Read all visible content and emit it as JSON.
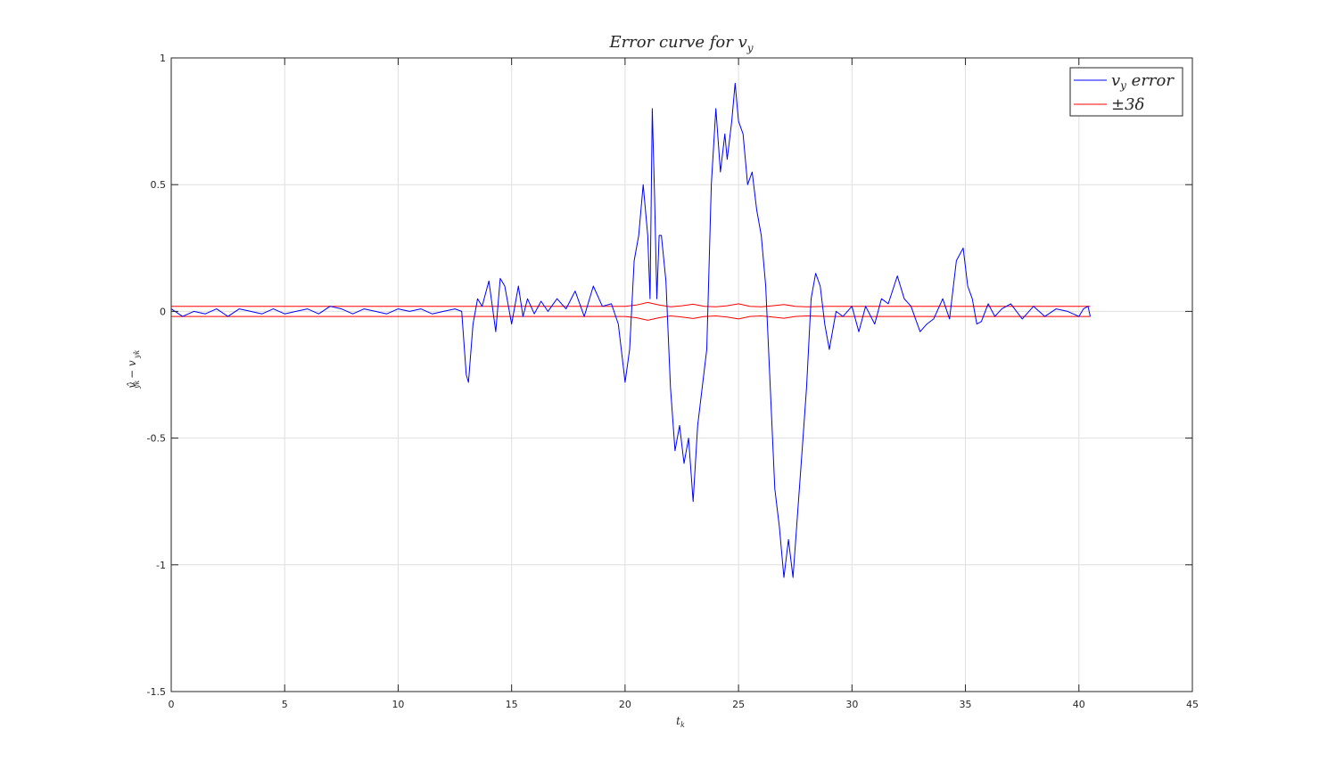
{
  "chart_data": {
    "type": "line",
    "title": "Error  curve  for  v",
    "title_sub": "y",
    "xlabel": "t",
    "xlabel_sub": "k",
    "ylabel": "v̂  − v",
    "ylabel_sub1": "yk",
    "ylabel_sub2": "yk",
    "xlim": [
      0,
      45
    ],
    "ylim": [
      -1.5,
      1
    ],
    "xticks": [
      0,
      5,
      10,
      15,
      20,
      25,
      30,
      35,
      40,
      45
    ],
    "xtick_labels": [
      "0",
      "5",
      "10",
      "15",
      "20",
      "25",
      "30",
      "35",
      "40",
      "45"
    ],
    "yticks": [
      1,
      0.5,
      0,
      -0.5,
      -1,
      -1.5
    ],
    "ytick_labels": [
      "1",
      "0.5",
      "0",
      "-0.5",
      "-1",
      "-1.5"
    ],
    "grid": true,
    "legend_position": "top-right",
    "legend": [
      {
        "text": "v",
        "sub": "y",
        "suffix": " error",
        "color": "#0000ff"
      },
      {
        "text": "±3δ",
        "sub": "",
        "suffix": "",
        "color": "#ff0000"
      }
    ],
    "series": [
      {
        "name": "v_y error",
        "color": "#0000ff",
        "x": [
          0,
          0.5,
          1,
          1.5,
          2,
          2.5,
          3,
          3.5,
          4,
          4.5,
          5,
          5.5,
          6,
          6.5,
          7,
          7.5,
          8,
          8.5,
          9,
          9.5,
          10,
          10.5,
          11,
          11.5,
          12,
          12.5,
          12.8,
          13,
          13.1,
          13.3,
          13.5,
          13.7,
          14,
          14.3,
          14.5,
          14.7,
          15,
          15.3,
          15.5,
          15.7,
          16,
          16.3,
          16.6,
          17,
          17.4,
          17.8,
          18.2,
          18.6,
          19,
          19.4,
          19.7,
          19.9,
          20,
          20.2,
          20.4,
          20.6,
          20.8,
          21,
          21.1,
          21.2,
          21.3,
          21.4,
          21.5,
          21.6,
          21.8,
          22,
          22.2,
          22.4,
          22.6,
          22.8,
          23,
          23.2,
          23.4,
          23.6,
          23.8,
          24,
          24.2,
          24.4,
          24.5,
          24.7,
          24.85,
          25,
          25.2,
          25.4,
          25.6,
          25.8,
          26,
          26.2,
          26.4,
          26.6,
          26.8,
          27,
          27.2,
          27.4,
          27.6,
          27.8,
          28,
          28.2,
          28.4,
          28.6,
          28.8,
          29,
          29.3,
          29.6,
          30,
          30.3,
          30.6,
          31,
          31.3,
          31.6,
          32,
          32.3,
          32.6,
          33,
          33.3,
          33.6,
          34,
          34.3,
          34.6,
          34.9,
          35.1,
          35.3,
          35.5,
          35.7,
          36,
          36.3,
          36.6,
          37,
          37.5,
          38,
          38.5,
          39,
          39.5,
          40,
          40.2,
          40.4,
          40.5
        ],
        "y": [
          0.01,
          -0.02,
          0,
          -0.01,
          0.01,
          -0.02,
          0.01,
          0,
          -0.01,
          0.01,
          -0.01,
          0,
          0.01,
          -0.01,
          0.02,
          0.01,
          -0.01,
          0.01,
          0,
          -0.01,
          0.01,
          0,
          0.01,
          -0.01,
          0,
          0.01,
          0,
          -0.25,
          -0.28,
          -0.05,
          0.05,
          0.02,
          0.12,
          -0.08,
          0.13,
          0.1,
          -0.05,
          0.1,
          -0.02,
          0.05,
          -0.01,
          0.04,
          0,
          0.05,
          0.01,
          0.08,
          -0.02,
          0.1,
          0.02,
          0.03,
          -0.05,
          -0.2,
          -0.28,
          -0.15,
          0.2,
          0.3,
          0.5,
          0.3,
          0.05,
          0.8,
          0.45,
          0.05,
          0.3,
          0.3,
          0.12,
          -0.3,
          -0.55,
          -0.45,
          -0.6,
          -0.5,
          -0.75,
          -0.45,
          -0.3,
          -0.15,
          0.5,
          0.8,
          0.55,
          0.7,
          0.6,
          0.75,
          0.9,
          0.75,
          0.7,
          0.5,
          0.55,
          0.4,
          0.3,
          0.1,
          -0.3,
          -0.7,
          -0.85,
          -1.05,
          -0.9,
          -1.05,
          -0.8,
          -0.55,
          -0.3,
          0.05,
          0.15,
          0.1,
          -0.05,
          -0.15,
          0,
          -0.02,
          0.02,
          -0.08,
          0.02,
          -0.05,
          0.05,
          0.03,
          0.14,
          0.05,
          0.02,
          -0.08,
          -0.05,
          -0.03,
          0.05,
          -0.03,
          0.2,
          0.25,
          0.1,
          0.05,
          -0.05,
          -0.04,
          0.03,
          -0.02,
          0.01,
          0.03,
          -0.03,
          0.02,
          -0.02,
          0.01,
          0,
          -0.02,
          0.01,
          0.02,
          -0.02
        ]
      },
      {
        "name": "±3δ",
        "color": "#ff0000",
        "x": [
          0,
          5,
          10,
          15,
          20,
          20.5,
          21,
          21.5,
          22,
          22.5,
          23,
          23.5,
          24,
          24.5,
          25,
          25.5,
          26,
          26.5,
          27,
          27.5,
          28,
          29,
          30,
          35,
          40.5
        ],
        "y_upper": [
          0.02,
          0.02,
          0.02,
          0.02,
          0.02,
          0.025,
          0.035,
          0.025,
          0.018,
          0.022,
          0.028,
          0.02,
          0.018,
          0.022,
          0.03,
          0.02,
          0.018,
          0.022,
          0.027,
          0.02,
          0.018,
          0.02,
          0.02,
          0.02,
          0.02
        ],
        "y_lower": [
          -0.02,
          -0.02,
          -0.02,
          -0.02,
          -0.02,
          -0.025,
          -0.035,
          -0.025,
          -0.018,
          -0.022,
          -0.028,
          -0.02,
          -0.018,
          -0.022,
          -0.03,
          -0.02,
          -0.018,
          -0.022,
          -0.027,
          -0.02,
          -0.018,
          -0.02,
          -0.02,
          -0.02,
          -0.02
        ]
      }
    ]
  }
}
